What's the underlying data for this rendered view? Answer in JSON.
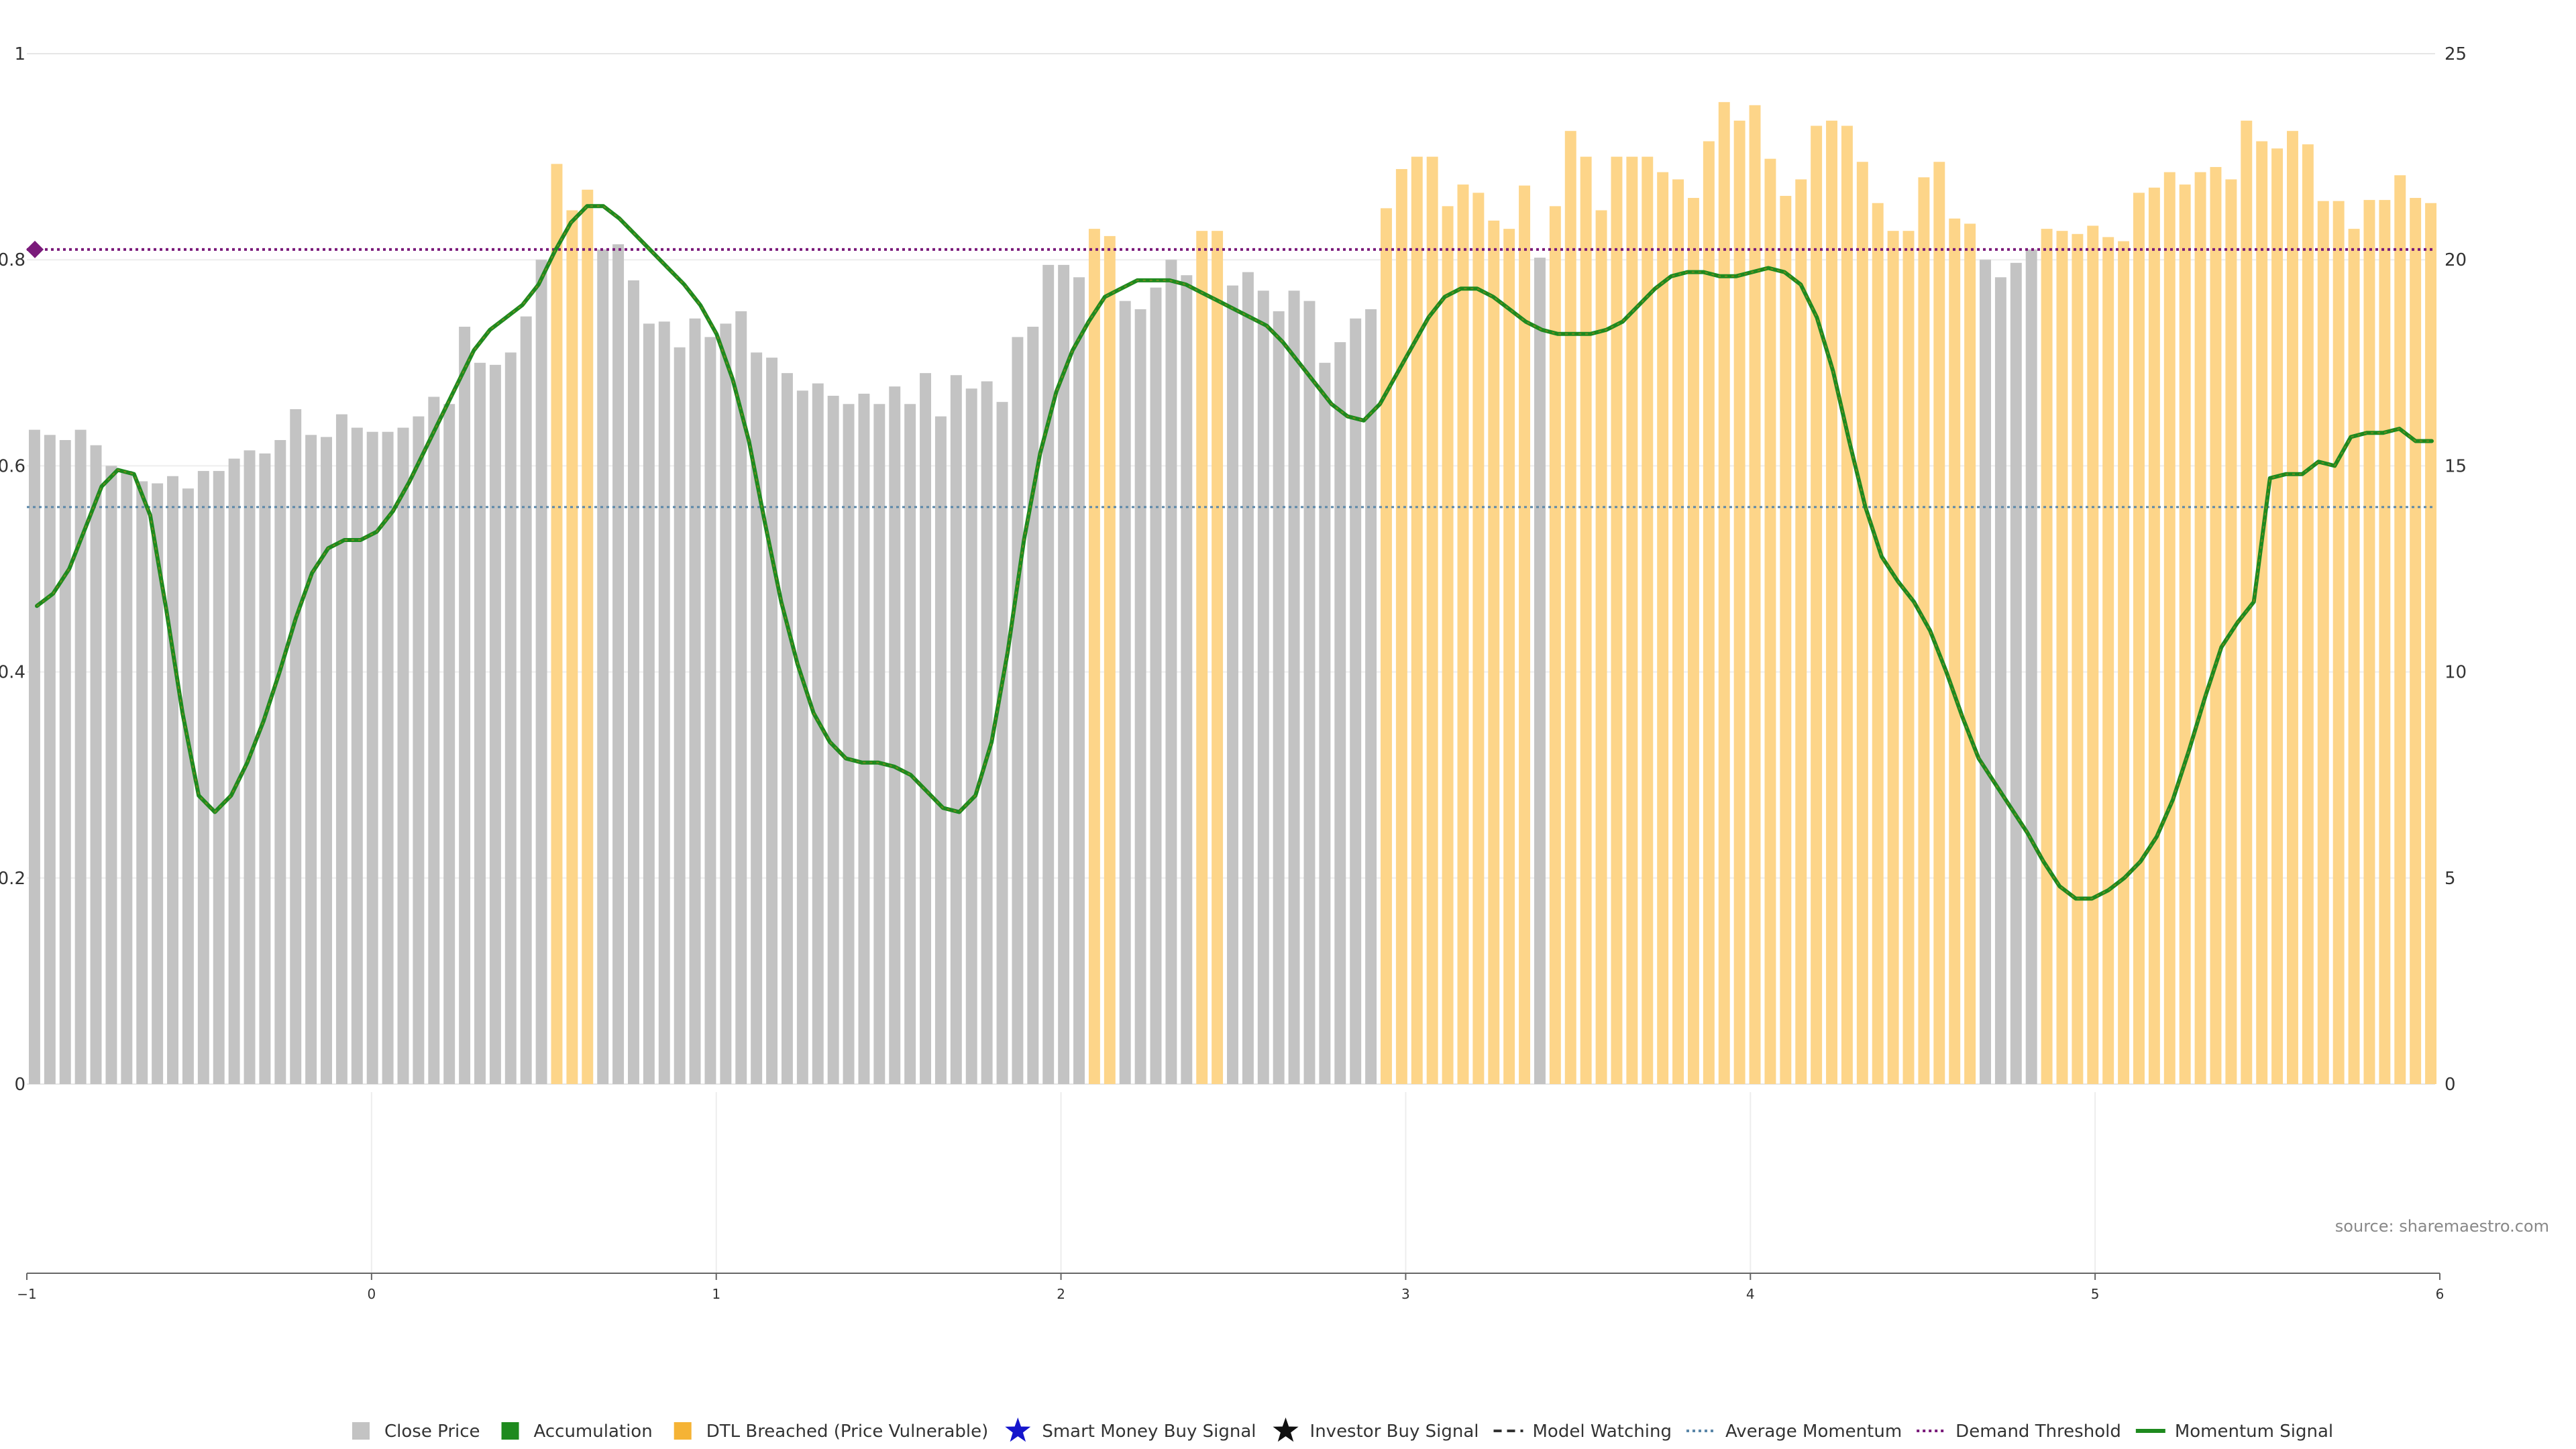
{
  "source": "source: sharemaestro.com",
  "colors": {
    "close_price": "#c3c3c3",
    "accumulation": "#1e8a1e",
    "dtl_breached": "#fdd589",
    "dtl_legend": "#f5b335",
    "smart_money": "#1515cc",
    "investor": "#111111",
    "model_watching": "#333333",
    "avg_momentum": "#5a86a8",
    "demand_threshold": "#7a1a7a",
    "momentum": "#1e8a1e",
    "momentum_dtl": "#7a8a1e",
    "grid": "#e6e6e6"
  },
  "legend": [
    {
      "label": "Close Price",
      "icon": "gray-square-icon"
    },
    {
      "label": "Accumulation",
      "icon": "green-square-icon"
    },
    {
      "label": "DTL Breached (Price Vulnerable)",
      "icon": "orange-square-icon"
    },
    {
      "label": "Smart Money Buy Signal",
      "icon": "blue-star-icon"
    },
    {
      "label": "Investor Buy Signal",
      "icon": "black-star-icon"
    },
    {
      "label": "Model Watching",
      "icon": "dashed-line-icon"
    },
    {
      "label": "Average Momentum",
      "icon": "blue-dotted-line-icon"
    },
    {
      "label": "Demand Threshold",
      "icon": "purple-dotted-line-icon"
    },
    {
      "label": "Momentum Signal",
      "icon": "green-line-icon"
    }
  ],
  "chart_data": {
    "type": "bar",
    "left_axis": {
      "ylim": [
        0,
        1
      ],
      "ticks": [
        "0",
        "0.2",
        "0.4",
        "0.6",
        "0.8",
        "1"
      ]
    },
    "right_axis": {
      "ylim": [
        0,
        25
      ],
      "ticks": [
        "0",
        "5",
        "10",
        "15",
        "20",
        "25"
      ]
    },
    "bottom_axis": {
      "xlim": [
        -1,
        6
      ],
      "ticks": [
        "−1",
        "0",
        "1",
        "2",
        "3",
        "4",
        "5",
        "6"
      ]
    },
    "grid": true,
    "legend_position": "bottom",
    "demand_threshold": 0.81,
    "average_momentum": 0.56,
    "close_price_bars": [
      {
        "v": 0.635,
        "s": "g"
      },
      {
        "v": 0.63,
        "s": "g"
      },
      {
        "v": 0.625,
        "s": "g"
      },
      {
        "v": 0.635,
        "s": "g"
      },
      {
        "v": 0.62,
        "s": "g"
      },
      {
        "v": 0.6,
        "s": "g"
      },
      {
        "v": 0.595,
        "s": "g"
      },
      {
        "v": 0.585,
        "s": "g"
      },
      {
        "v": 0.583,
        "s": "g"
      },
      {
        "v": 0.59,
        "s": "g"
      },
      {
        "v": 0.578,
        "s": "g"
      },
      {
        "v": 0.595,
        "s": "g"
      },
      {
        "v": 0.595,
        "s": "g"
      },
      {
        "v": 0.607,
        "s": "g"
      },
      {
        "v": 0.615,
        "s": "g"
      },
      {
        "v": 0.612,
        "s": "g"
      },
      {
        "v": 0.625,
        "s": "g"
      },
      {
        "v": 0.655,
        "s": "g"
      },
      {
        "v": 0.63,
        "s": "g"
      },
      {
        "v": 0.628,
        "s": "g"
      },
      {
        "v": 0.65,
        "s": "g"
      },
      {
        "v": 0.637,
        "s": "g"
      },
      {
        "v": 0.633,
        "s": "g"
      },
      {
        "v": 0.633,
        "s": "g"
      },
      {
        "v": 0.637,
        "s": "g"
      },
      {
        "v": 0.648,
        "s": "g"
      },
      {
        "v": 0.667,
        "s": "g"
      },
      {
        "v": 0.66,
        "s": "g"
      },
      {
        "v": 0.735,
        "s": "g"
      },
      {
        "v": 0.7,
        "s": "g"
      },
      {
        "v": 0.698,
        "s": "g"
      },
      {
        "v": 0.71,
        "s": "g"
      },
      {
        "v": 0.745,
        "s": "g"
      },
      {
        "v": 0.8,
        "s": "g"
      },
      {
        "v": 0.893,
        "s": "o"
      },
      {
        "v": 0.848,
        "s": "o"
      },
      {
        "v": 0.868,
        "s": "o"
      },
      {
        "v": 0.81,
        "s": "g"
      },
      {
        "v": 0.815,
        "s": "g"
      },
      {
        "v": 0.78,
        "s": "g"
      },
      {
        "v": 0.738,
        "s": "g"
      },
      {
        "v": 0.74,
        "s": "g"
      },
      {
        "v": 0.715,
        "s": "g"
      },
      {
        "v": 0.743,
        "s": "g"
      },
      {
        "v": 0.725,
        "s": "g"
      },
      {
        "v": 0.738,
        "s": "g"
      },
      {
        "v": 0.75,
        "s": "g"
      },
      {
        "v": 0.71,
        "s": "g"
      },
      {
        "v": 0.705,
        "s": "g"
      },
      {
        "v": 0.69,
        "s": "g"
      },
      {
        "v": 0.673,
        "s": "g"
      },
      {
        "v": 0.68,
        "s": "g"
      },
      {
        "v": 0.668,
        "s": "g"
      },
      {
        "v": 0.66,
        "s": "g"
      },
      {
        "v": 0.67,
        "s": "g"
      },
      {
        "v": 0.66,
        "s": "g"
      },
      {
        "v": 0.677,
        "s": "g"
      },
      {
        "v": 0.66,
        "s": "g"
      },
      {
        "v": 0.69,
        "s": "g"
      },
      {
        "v": 0.648,
        "s": "g"
      },
      {
        "v": 0.688,
        "s": "g"
      },
      {
        "v": 0.675,
        "s": "g"
      },
      {
        "v": 0.682,
        "s": "g"
      },
      {
        "v": 0.662,
        "s": "g"
      },
      {
        "v": 0.725,
        "s": "g"
      },
      {
        "v": 0.735,
        "s": "g"
      },
      {
        "v": 0.795,
        "s": "g"
      },
      {
        "v": 0.795,
        "s": "g"
      },
      {
        "v": 0.783,
        "s": "g"
      },
      {
        "v": 0.83,
        "s": "o"
      },
      {
        "v": 0.823,
        "s": "o"
      },
      {
        "v": 0.76,
        "s": "g"
      },
      {
        "v": 0.752,
        "s": "g"
      },
      {
        "v": 0.773,
        "s": "g"
      },
      {
        "v": 0.8,
        "s": "g"
      },
      {
        "v": 0.785,
        "s": "g"
      },
      {
        "v": 0.828,
        "s": "o"
      },
      {
        "v": 0.828,
        "s": "o"
      },
      {
        "v": 0.775,
        "s": "g"
      },
      {
        "v": 0.788,
        "s": "g"
      },
      {
        "v": 0.77,
        "s": "g"
      },
      {
        "v": 0.75,
        "s": "g"
      },
      {
        "v": 0.77,
        "s": "g"
      },
      {
        "v": 0.76,
        "s": "g"
      },
      {
        "v": 0.7,
        "s": "g"
      },
      {
        "v": 0.72,
        "s": "g"
      },
      {
        "v": 0.743,
        "s": "g"
      },
      {
        "v": 0.752,
        "s": "g"
      },
      {
        "v": 0.85,
        "s": "o"
      },
      {
        "v": 0.888,
        "s": "o"
      },
      {
        "v": 0.9,
        "s": "o"
      },
      {
        "v": 0.9,
        "s": "o"
      },
      {
        "v": 0.852,
        "s": "o"
      },
      {
        "v": 0.873,
        "s": "o"
      },
      {
        "v": 0.865,
        "s": "o"
      },
      {
        "v": 0.838,
        "s": "o"
      },
      {
        "v": 0.83,
        "s": "o"
      },
      {
        "v": 0.872,
        "s": "o"
      },
      {
        "v": 0.802,
        "s": "g"
      },
      {
        "v": 0.852,
        "s": "o"
      },
      {
        "v": 0.925,
        "s": "o"
      },
      {
        "v": 0.9,
        "s": "o"
      },
      {
        "v": 0.848,
        "s": "o"
      },
      {
        "v": 0.9,
        "s": "o"
      },
      {
        "v": 0.9,
        "s": "o"
      },
      {
        "v": 0.9,
        "s": "o"
      },
      {
        "v": 0.885,
        "s": "o"
      },
      {
        "v": 0.878,
        "s": "o"
      },
      {
        "v": 0.86,
        "s": "o"
      },
      {
        "v": 0.915,
        "s": "o"
      },
      {
        "v": 0.953,
        "s": "o"
      },
      {
        "v": 0.935,
        "s": "o"
      },
      {
        "v": 0.95,
        "s": "o"
      },
      {
        "v": 0.898,
        "s": "o"
      },
      {
        "v": 0.862,
        "s": "o"
      },
      {
        "v": 0.878,
        "s": "o"
      },
      {
        "v": 0.93,
        "s": "o"
      },
      {
        "v": 0.935,
        "s": "o"
      },
      {
        "v": 0.93,
        "s": "o"
      },
      {
        "v": 0.895,
        "s": "o"
      },
      {
        "v": 0.855,
        "s": "o"
      },
      {
        "v": 0.828,
        "s": "o"
      },
      {
        "v": 0.828,
        "s": "o"
      },
      {
        "v": 0.88,
        "s": "o"
      },
      {
        "v": 0.895,
        "s": "o"
      },
      {
        "v": 0.84,
        "s": "o"
      },
      {
        "v": 0.835,
        "s": "o"
      },
      {
        "v": 0.8,
        "s": "g"
      },
      {
        "v": 0.783,
        "s": "g"
      },
      {
        "v": 0.797,
        "s": "g"
      },
      {
        "v": 0.81,
        "s": "g"
      },
      {
        "v": 0.83,
        "s": "o"
      },
      {
        "v": 0.828,
        "s": "o"
      },
      {
        "v": 0.825,
        "s": "o"
      },
      {
        "v": 0.833,
        "s": "o"
      },
      {
        "v": 0.822,
        "s": "o"
      },
      {
        "v": 0.818,
        "s": "o"
      },
      {
        "v": 0.865,
        "s": "o"
      },
      {
        "v": 0.87,
        "s": "o"
      },
      {
        "v": 0.885,
        "s": "o"
      },
      {
        "v": 0.873,
        "s": "o"
      },
      {
        "v": 0.885,
        "s": "o"
      },
      {
        "v": 0.89,
        "s": "o"
      },
      {
        "v": 0.878,
        "s": "o"
      },
      {
        "v": 0.935,
        "s": "o"
      },
      {
        "v": 0.915,
        "s": "o"
      },
      {
        "v": 0.908,
        "s": "o"
      },
      {
        "v": 0.925,
        "s": "o"
      },
      {
        "v": 0.912,
        "s": "o"
      },
      {
        "v": 0.857,
        "s": "o"
      },
      {
        "v": 0.857,
        "s": "o"
      },
      {
        "v": 0.83,
        "s": "o"
      },
      {
        "v": 0.858,
        "s": "o"
      },
      {
        "v": 0.858,
        "s": "o"
      },
      {
        "v": 0.882,
        "s": "o"
      },
      {
        "v": 0.86,
        "s": "o"
      },
      {
        "v": 0.855,
        "s": "o"
      }
    ],
    "momentum_signal": [
      11.6,
      11.9,
      12.5,
      13.5,
      14.5,
      14.9,
      14.8,
      13.8,
      11.5,
      9.0,
      7.0,
      6.6,
      7.0,
      7.8,
      8.8,
      10.0,
      11.3,
      12.4,
      13.0,
      13.2,
      13.2,
      13.4,
      13.9,
      14.6,
      15.4,
      16.2,
      17.0,
      17.8,
      18.3,
      18.6,
      18.9,
      19.4,
      20.2,
      20.9,
      21.3,
      21.3,
      21.0,
      20.6,
      20.2,
      19.8,
      19.4,
      18.9,
      18.2,
      17.1,
      15.6,
      13.6,
      11.7,
      10.2,
      9.0,
      8.3,
      7.9,
      7.8,
      7.8,
      7.7,
      7.5,
      7.1,
      6.7,
      6.6,
      7.0,
      8.3,
      10.5,
      13.2,
      15.3,
      16.8,
      17.8,
      18.5,
      19.1,
      19.3,
      19.5,
      19.5,
      19.5,
      19.4,
      19.2,
      19.0,
      18.8,
      18.6,
      18.4,
      18.0,
      17.5,
      17.0,
      16.5,
      16.2,
      16.1,
      16.5,
      17.2,
      17.9,
      18.6,
      19.1,
      19.3,
      19.3,
      19.1,
      18.8,
      18.5,
      18.3,
      18.2,
      18.2,
      18.2,
      18.3,
      18.5,
      18.9,
      19.3,
      19.6,
      19.7,
      19.7,
      19.6,
      19.6,
      19.7,
      19.8,
      19.7,
      19.4,
      18.6,
      17.3,
      15.6,
      14.0,
      12.8,
      12.2,
      11.7,
      11.0,
      10.0,
      8.9,
      7.9,
      7.3,
      6.7,
      6.1,
      5.4,
      4.8,
      4.5,
      4.5,
      4.7,
      5.0,
      5.4,
      6.0,
      6.9,
      8.1,
      9.4,
      10.6,
      11.2,
      11.7,
      14.7,
      14.8,
      14.8,
      15.1,
      15.0,
      15.7,
      15.8,
      15.8,
      15.9,
      15.6,
      15.6
    ]
  }
}
